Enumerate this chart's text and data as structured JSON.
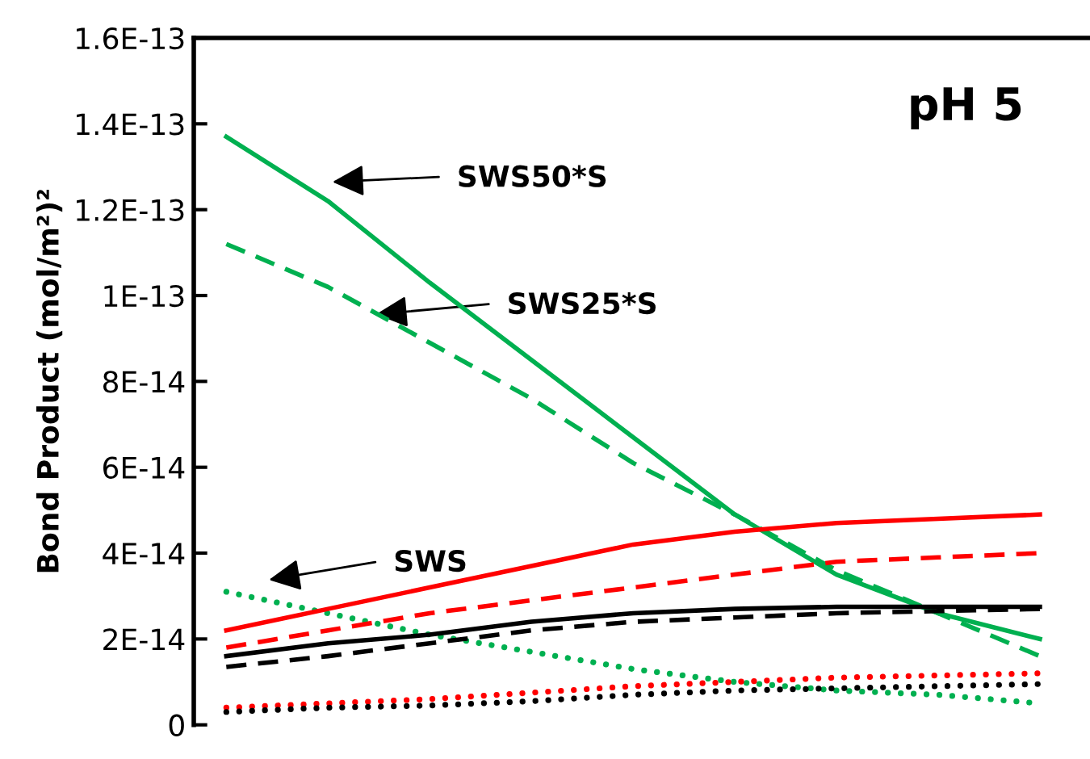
{
  "chart_data": {
    "type": "line",
    "title": "pH 5",
    "ylabel": "Bond Product (mol/m²)²",
    "categories": [
      null,
      null,
      null,
      null,
      null,
      null,
      null,
      null,
      null
    ],
    "ylim": [
      0,
      1.6e-13
    ],
    "yticks": [
      0,
      {
        "value": 2e-14,
        "label": "2E-14"
      },
      {
        "value": 4e-14,
        "label": "4E-14"
      },
      {
        "value": 6e-14,
        "label": "6E-14"
      },
      {
        "value": 8e-14,
        "label": "8E-14"
      },
      {
        "value": 1e-13,
        "label": "1E-13"
      },
      {
        "value": 1.2e-13,
        "label": "1.2E-13"
      },
      {
        "value": 1.4e-13,
        "label": "1.4E-13"
      },
      {
        "value": 1.6e-13,
        "label": "1.6E-13"
      }
    ],
    "tick_labels": "y",
    "grid": false,
    "legend": false,
    "marker": "none",
    "series": [
      {
        "color": "#00b050",
        "line_style": "solid",
        "values": [
          1.37e-13,
          1.22e-13,
          1.03e-13,
          8.5e-14,
          6.7e-14,
          4.9e-14,
          3.5e-14,
          2.6e-14,
          2e-14
        ]
      },
      {
        "color": "#00b050",
        "line_style": "dashed",
        "values": [
          1.12e-13,
          1.02e-13,
          8.9e-14,
          7.6e-14,
          6.1e-14,
          4.9e-14,
          3.6e-14,
          2.6e-14,
          1.6e-14
        ]
      },
      {
        "color": "#00b050",
        "line_style": "dotted",
        "values": [
          3.1e-14,
          2.6e-14,
          2.1e-14,
          1.7e-14,
          1.3e-14,
          1e-14,
          8e-15,
          7e-15,
          5e-15
        ]
      },
      {
        "color": "#ff0000",
        "line_style": "solid",
        "values": [
          2.2e-14,
          2.7e-14,
          3.2e-14,
          3.7e-14,
          4.2e-14,
          4.5e-14,
          4.7e-14,
          4.8e-14,
          4.9e-14
        ]
      },
      {
        "color": "#ff0000",
        "line_style": "dashed",
        "values": [
          1.8e-14,
          2.2e-14,
          2.6e-14,
          2.9e-14,
          3.2e-14,
          3.5e-14,
          3.8e-14,
          3.9e-14,
          4e-14
        ]
      },
      {
        "color": "#000000",
        "line_style": "solid",
        "values": [
          1.6e-14,
          1.9e-14,
          2.1e-14,
          2.4e-14,
          2.6e-14,
          2.7e-14,
          2.75e-14,
          2.75e-14,
          2.75e-14
        ]
      },
      {
        "color": "#000000",
        "line_style": "dashed",
        "values": [
          1.35e-14,
          1.6e-14,
          1.9e-14,
          2.2e-14,
          2.4e-14,
          2.5e-14,
          2.6e-14,
          2.65e-14,
          2.7e-14
        ]
      },
      {
        "color": "#ff0000",
        "line_style": "dotted",
        "values": [
          4e-15,
          5e-15,
          6e-15,
          7.5e-15,
          9e-15,
          1e-14,
          1.1e-14,
          1.15e-14,
          1.2e-14
        ]
      },
      {
        "color": "#000000",
        "line_style": "dotted",
        "values": [
          3e-15,
          4e-15,
          4.5e-15,
          5.5e-15,
          7e-15,
          8e-15,
          8.5e-15,
          9e-15,
          9.5e-15
        ]
      }
    ],
    "annotations": [
      "SWS50*S",
      "SWS25*S",
      "SWS"
    ]
  }
}
